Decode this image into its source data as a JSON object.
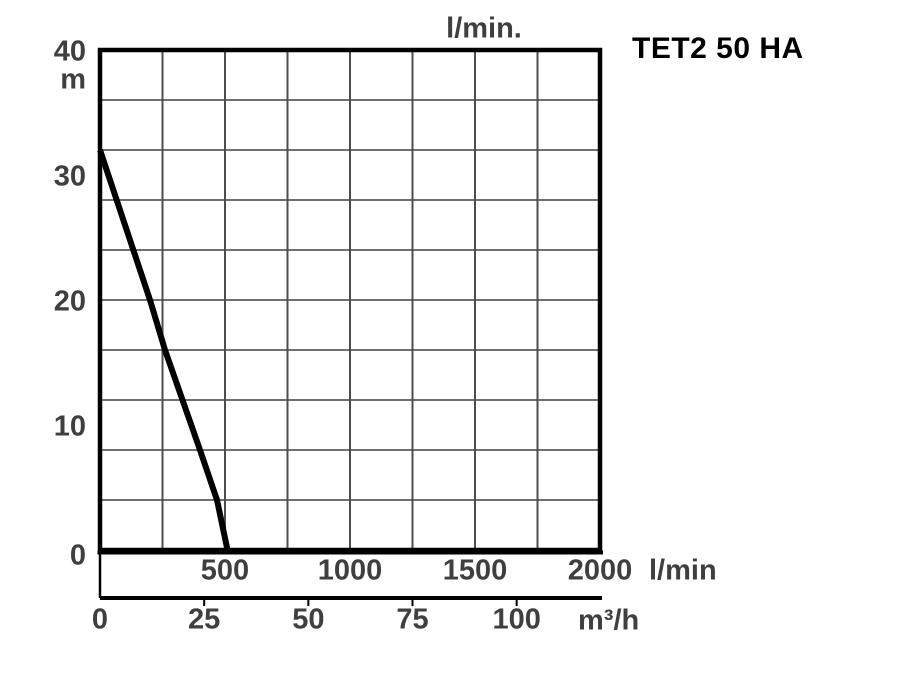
{
  "labels": {
    "title": "TET2 50 HA",
    "top_unit": "l/min.",
    "y_unit": "m",
    "x_primary_unit": "l/min",
    "x_secondary_unit": "m³/h"
  },
  "colors": {
    "background": "#ffffff",
    "curve": "#000000",
    "border": "#000000",
    "grid_horizontal": "#1a1a1a",
    "grid_vertical": "#4d4d4d",
    "tick_text": "#3f3f3f",
    "title_text": "#000000"
  },
  "chart_data": {
    "type": "line",
    "title": "TET2 50 HA",
    "grid": true,
    "legend": false,
    "y_axis": {
      "label": "m",
      "min": 0,
      "max": 40,
      "grid_step": 4,
      "tick_values": [
        0,
        10,
        20,
        30,
        40
      ],
      "tick_labels": [
        "0",
        "10",
        "20",
        "30",
        "40"
      ]
    },
    "x_axis_primary": {
      "label": "l/min",
      "top_label": "l/min.",
      "min": 0,
      "max": 2000,
      "grid_step": 250,
      "tick_values": [
        500,
        1000,
        1500,
        2000
      ],
      "tick_labels": [
        "500",
        "1000",
        "1500",
        "2000"
      ]
    },
    "x_axis_secondary": {
      "label": "m³/h",
      "min": 0,
      "max": 120,
      "lmin_per_unit": 16.6667,
      "tick_values": [
        0,
        25,
        50,
        75,
        100
      ],
      "tick_labels": [
        "0",
        "25",
        "50",
        "75",
        "100"
      ]
    },
    "series": [
      {
        "name": "TET2 50 HA head-flow curve",
        "x_unit": "l/min",
        "y_unit": "m",
        "points": [
          [
            0,
            32
          ],
          [
            200,
            20
          ],
          [
            260,
            16
          ],
          [
            330,
            12
          ],
          [
            400,
            8
          ],
          [
            468,
            4
          ],
          [
            510,
            0
          ]
        ]
      }
    ]
  }
}
